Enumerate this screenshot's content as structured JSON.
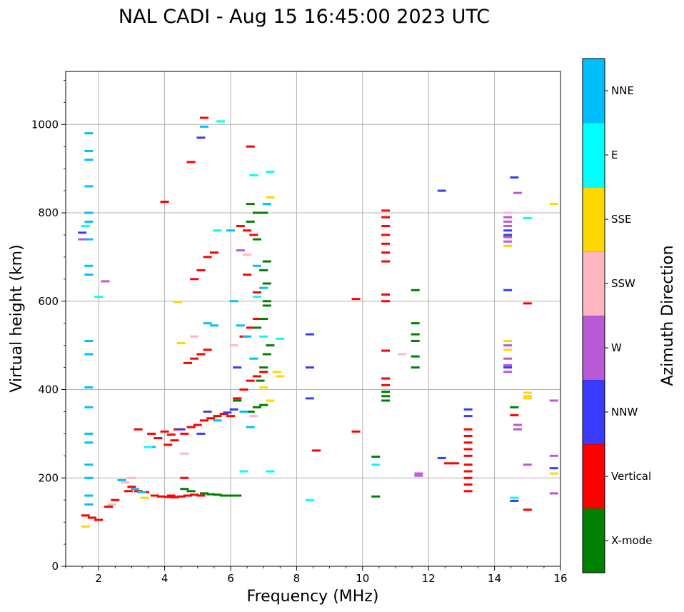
{
  "chart_data": {
    "type": "scatter",
    "title": "NAL CADI - Aug 15 16:45:00 2023 UTC",
    "xlabel": "Frequency (MHz)",
    "ylabel": "Virtual height (km)",
    "xlim": [
      1,
      16
    ],
    "ylim": [
      0,
      1120
    ],
    "xticks": [
      2,
      4,
      6,
      8,
      10,
      12,
      14,
      16
    ],
    "yticks": [
      0,
      200,
      400,
      600,
      800,
      1000
    ],
    "grid": true,
    "colorbar": {
      "label": "Azimuth Direction",
      "categories": [
        {
          "name": "X-mode",
          "color": "#008000"
        },
        {
          "name": "Vertical",
          "color": "#ff0000"
        },
        {
          "name": "NNW",
          "color": "#3a3aff"
        },
        {
          "name": "W",
          "color": "#b859d6"
        },
        {
          "name": "SSW",
          "color": "#ffb6c1"
        },
        {
          "name": "SSE",
          "color": "#ffd700"
        },
        {
          "name": "E",
          "color": "#00ffff"
        },
        {
          "name": "NNE",
          "color": "#00bfff"
        }
      ]
    },
    "series": [
      {
        "name": "Vertical",
        "points": [
          [
            3.7,
            160
          ],
          [
            3.9,
            158
          ],
          [
            4.1,
            157
          ],
          [
            4.3,
            156
          ],
          [
            4.5,
            158
          ],
          [
            4.7,
            160
          ],
          [
            4.9,
            162
          ],
          [
            5.1,
            160
          ],
          [
            3.2,
            170
          ],
          [
            3.4,
            168
          ],
          [
            3.6,
            300
          ],
          [
            3.8,
            290
          ],
          [
            4.0,
            305
          ],
          [
            4.2,
            298
          ],
          [
            4.4,
            310
          ],
          [
            4.6,
            300
          ],
          [
            4.8,
            315
          ],
          [
            5.0,
            320
          ],
          [
            5.2,
            330
          ],
          [
            5.4,
            335
          ],
          [
            5.6,
            340
          ],
          [
            5.8,
            345
          ],
          [
            6.0,
            340
          ],
          [
            4.1,
            275
          ],
          [
            4.3,
            285
          ],
          [
            6.2,
            380
          ],
          [
            6.4,
            400
          ],
          [
            6.6,
            420
          ],
          [
            6.8,
            430
          ],
          [
            7.0,
            440
          ],
          [
            4.7,
            460
          ],
          [
            4.9,
            470
          ],
          [
            5.1,
            480
          ],
          [
            5.3,
            490
          ],
          [
            6.4,
            520
          ],
          [
            6.6,
            540
          ],
          [
            6.8,
            560
          ],
          [
            4.9,
            650
          ],
          [
            5.1,
            670
          ],
          [
            5.3,
            700
          ],
          [
            5.5,
            710
          ],
          [
            6.3,
            770
          ],
          [
            6.5,
            760
          ],
          [
            6.7,
            750
          ],
          [
            6.5,
            660
          ],
          [
            6.8,
            620
          ],
          [
            4.2,
            160
          ],
          [
            4.6,
            200
          ],
          [
            4.0,
            825
          ],
          [
            4.8,
            915
          ],
          [
            6.6,
            950
          ],
          [
            5.2,
            1015
          ],
          [
            3.2,
            310
          ],
          [
            1.6,
            115
          ],
          [
            1.8,
            110
          ],
          [
            2.0,
            105
          ],
          [
            2.3,
            135
          ],
          [
            2.5,
            150
          ],
          [
            2.9,
            170
          ],
          [
            3.0,
            180
          ],
          [
            13.2,
            170
          ],
          [
            13.2,
            185
          ],
          [
            13.2,
            200
          ],
          [
            13.2,
            215
          ],
          [
            13.2,
            230
          ],
          [
            13.2,
            250
          ],
          [
            13.2,
            265
          ],
          [
            13.2,
            280
          ],
          [
            13.2,
            295
          ],
          [
            13.2,
            310
          ],
          [
            12.8,
            233
          ],
          [
            12.6,
            233
          ],
          [
            10.7,
            690
          ],
          [
            10.7,
            710
          ],
          [
            10.7,
            730
          ],
          [
            10.7,
            750
          ],
          [
            10.7,
            770
          ],
          [
            10.7,
            790
          ],
          [
            10.7,
            805
          ],
          [
            10.7,
            600
          ],
          [
            10.7,
            615
          ],
          [
            10.7,
            488
          ],
          [
            10.7,
            410
          ],
          [
            10.7,
            425
          ],
          [
            9.8,
            605
          ],
          [
            9.8,
            305
          ],
          [
            8.6,
            262
          ],
          [
            15.0,
            128
          ],
          [
            14.6,
            342
          ],
          [
            15.0,
            595
          ]
        ]
      },
      {
        "name": "X-mode",
        "points": [
          [
            5.2,
            165
          ],
          [
            5.4,
            163
          ],
          [
            5.6,
            162
          ],
          [
            5.8,
            160
          ],
          [
            6.0,
            160
          ],
          [
            6.2,
            160
          ],
          [
            4.6,
            175
          ],
          [
            4.8,
            170
          ],
          [
            6.6,
            350
          ],
          [
            6.8,
            360
          ],
          [
            7.0,
            365
          ],
          [
            6.9,
            420
          ],
          [
            7.0,
            450
          ],
          [
            7.1,
            480
          ],
          [
            7.2,
            500
          ],
          [
            6.8,
            540
          ],
          [
            7.0,
            560
          ],
          [
            7.1,
            590
          ],
          [
            7.1,
            640
          ],
          [
            7.0,
            670
          ],
          [
            7.1,
            690
          ],
          [
            6.6,
            780
          ],
          [
            6.8,
            800
          ],
          [
            7.0,
            800
          ],
          [
            6.6,
            820
          ],
          [
            6.8,
            740
          ],
          [
            7.1,
            600
          ],
          [
            10.4,
            248
          ],
          [
            10.4,
            158
          ],
          [
            10.7,
            375
          ],
          [
            10.7,
            385
          ],
          [
            10.7,
            395
          ],
          [
            11.6,
            450
          ],
          [
            11.6,
            475
          ],
          [
            11.6,
            510
          ],
          [
            11.6,
            525
          ],
          [
            11.6,
            550
          ],
          [
            11.6,
            625
          ],
          [
            14.6,
            360
          ],
          [
            6.2,
            375
          ]
        ]
      },
      {
        "name": "NNE",
        "points": [
          [
            1.7,
            980
          ],
          [
            1.7,
            940
          ],
          [
            1.7,
            920
          ],
          [
            1.7,
            860
          ],
          [
            1.7,
            800
          ],
          [
            1.7,
            780
          ],
          [
            1.7,
            740
          ],
          [
            1.7,
            680
          ],
          [
            1.7,
            660
          ],
          [
            1.7,
            510
          ],
          [
            1.7,
            480
          ],
          [
            1.7,
            405
          ],
          [
            1.7,
            360
          ],
          [
            1.7,
            300
          ],
          [
            1.7,
            280
          ],
          [
            1.7,
            230
          ],
          [
            1.7,
            200
          ],
          [
            1.7,
            160
          ],
          [
            1.7,
            140
          ],
          [
            3.6,
            270
          ],
          [
            5.3,
            550
          ],
          [
            5.5,
            545
          ],
          [
            6.1,
            600
          ],
          [
            6.5,
            520
          ],
          [
            6.7,
            470
          ],
          [
            6.3,
            545
          ],
          [
            7.0,
            630
          ],
          [
            6.8,
            680
          ],
          [
            7.1,
            820
          ],
          [
            5.2,
            995
          ],
          [
            5.6,
            330
          ],
          [
            6.0,
            760
          ],
          [
            2.7,
            195
          ],
          [
            3.1,
            175
          ],
          [
            3.3,
            168
          ],
          [
            6.4,
            350
          ],
          [
            6.6,
            315
          ]
        ]
      },
      {
        "name": "NNW",
        "points": [
          [
            5.1,
            970
          ],
          [
            5.3,
            350
          ],
          [
            5.1,
            300
          ],
          [
            4.5,
            310
          ],
          [
            6.2,
            450
          ],
          [
            8.4,
            525
          ],
          [
            8.4,
            450
          ],
          [
            8.4,
            380
          ],
          [
            13.2,
            355
          ],
          [
            13.2,
            340
          ],
          [
            14.4,
            625
          ],
          [
            14.4,
            760
          ],
          [
            14.4,
            750
          ],
          [
            14.4,
            450
          ],
          [
            14.6,
            880
          ],
          [
            14.6,
            148
          ],
          [
            15.8,
            222
          ],
          [
            12.4,
            245
          ],
          [
            12.4,
            850
          ],
          [
            1.5,
            755
          ],
          [
            5.9,
            348
          ],
          [
            6.1,
            355
          ]
        ]
      },
      {
        "name": "W",
        "points": [
          [
            14.4,
            790
          ],
          [
            14.4,
            780
          ],
          [
            14.4,
            770
          ],
          [
            14.4,
            745
          ],
          [
            14.4,
            735
          ],
          [
            14.4,
            500
          ],
          [
            14.4,
            470
          ],
          [
            14.4,
            455
          ],
          [
            14.4,
            440
          ],
          [
            14.7,
            845
          ],
          [
            14.7,
            320
          ],
          [
            14.7,
            310
          ],
          [
            15.0,
            230
          ],
          [
            15.8,
            375
          ],
          [
            15.8,
            250
          ],
          [
            15.8,
            165
          ],
          [
            11.7,
            210
          ],
          [
            11.7,
            205
          ],
          [
            6.3,
            715
          ],
          [
            2.2,
            645
          ],
          [
            1.5,
            740
          ]
        ]
      },
      {
        "name": "SSW",
        "points": [
          [
            11.2,
            480
          ],
          [
            14.4,
            800
          ],
          [
            6.5,
            705
          ],
          [
            4.9,
            520
          ],
          [
            6.1,
            500
          ],
          [
            6.7,
            340
          ],
          [
            2.4,
            140
          ],
          [
            2.8,
            190
          ],
          [
            3.0,
            200
          ],
          [
            4.6,
            255
          ]
        ]
      },
      {
        "name": "SSE",
        "points": [
          [
            14.4,
            510
          ],
          [
            14.4,
            490
          ],
          [
            14.4,
            725
          ],
          [
            15.0,
            393
          ],
          [
            15.0,
            385
          ],
          [
            15.0,
            380
          ],
          [
            15.8,
            820
          ],
          [
            15.8,
            210
          ],
          [
            7.2,
            375
          ],
          [
            7.4,
            440
          ],
          [
            7.5,
            430
          ],
          [
            7.2,
            835
          ],
          [
            7.0,
            405
          ],
          [
            4.5,
            505
          ],
          [
            4.4,
            598
          ],
          [
            1.6,
            90
          ],
          [
            3.4,
            155
          ]
        ]
      },
      {
        "name": "E",
        "points": [
          [
            14.6,
            155
          ],
          [
            15.0,
            788
          ],
          [
            8.4,
            150
          ],
          [
            10.4,
            230
          ],
          [
            7.2,
            215
          ],
          [
            6.4,
            215
          ],
          [
            7.0,
            520
          ],
          [
            7.5,
            515
          ],
          [
            6.7,
            885
          ],
          [
            7.2,
            893
          ],
          [
            5.6,
            760
          ],
          [
            6.8,
            610
          ],
          [
            3.5,
            270
          ],
          [
            5.7,
            1007
          ],
          [
            2.0,
            610
          ],
          [
            1.6,
            770
          ]
        ]
      }
    ]
  }
}
